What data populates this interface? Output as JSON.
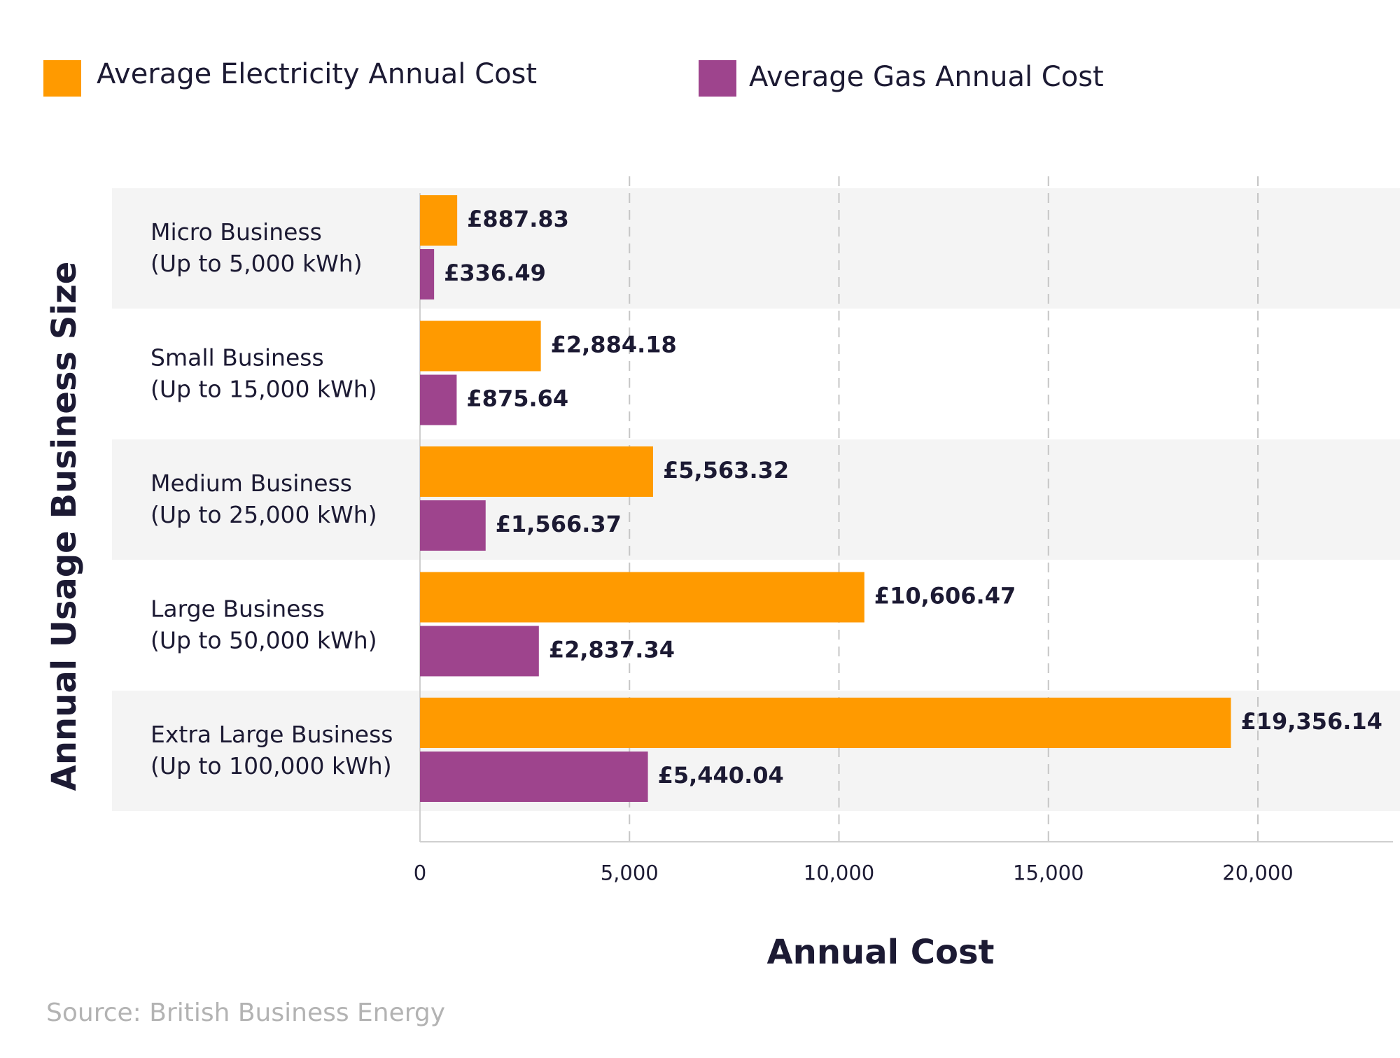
{
  "chart_data": {
    "type": "bar",
    "orientation": "horizontal",
    "categories": [
      [
        "Micro Business",
        "(Up to 5,000 kWh)"
      ],
      [
        "Small Business",
        "(Up to 15,000 kWh)"
      ],
      [
        "Medium Business",
        "(Up to 25,000 kWh)"
      ],
      [
        "Large Business",
        "(Up to 50,000 kWh)"
      ],
      [
        "Extra Large Business",
        "(Up to 100,000 kWh)"
      ]
    ],
    "series": [
      {
        "name": "Average Electricity Annual Cost",
        "color": "#ff9a00",
        "values": [
          887.83,
          2884.18,
          5563.32,
          10606.47,
          19356.14
        ],
        "labels": [
          "£887.83",
          "£2,884.18",
          "£5,563.32",
          "£10,606.47",
          "£19,356.14"
        ]
      },
      {
        "name": "Average Gas Annual Cost",
        "color": "#9e448d",
        "values": [
          336.49,
          875.64,
          1566.37,
          2837.34,
          5440.04
        ],
        "labels": [
          "£336.49",
          "£875.64",
          "£1,566.37",
          "£2,837.34",
          "£5,440.04"
        ]
      }
    ],
    "xlabel": "Annual Cost",
    "ylabel": "Annual Usage Business Size",
    "xlim": [
      0,
      20000
    ],
    "xticks": [
      0,
      5000,
      10000,
      15000,
      20000
    ],
    "xtick_labels": [
      "0",
      "5,000",
      "10,000",
      "15,000",
      "20,000"
    ],
    "grid": "vertical-dashed",
    "legend_position": "top",
    "band_color": "#f4f4f4",
    "source": "Source: British Business Energy"
  }
}
